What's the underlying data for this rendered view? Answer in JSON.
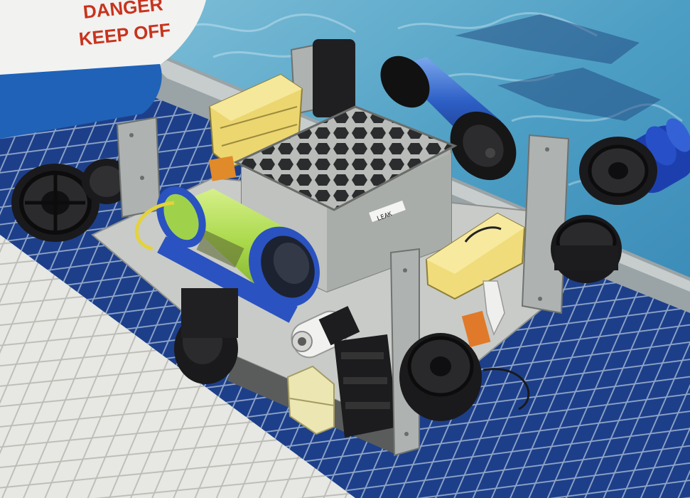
{
  "banner": {
    "line1": "DANGER",
    "line2": "KEEP OFF"
  },
  "hull_label": "LEAK",
  "colors": {
    "pool_water": "#5ea9c9",
    "pool_tile_blue": "#1c3d86",
    "deck_tile_white": "#e6e6e2",
    "frame_gray": "#c9cbc8",
    "enclosure_gray": "#c4c7c3",
    "flotation_yellow": "#f1e08a",
    "tube_green": "#b9e05a",
    "tube_blue": "#2a5cc4",
    "thruster_black": "#1a1a1c",
    "banner_blue": "#1f62b8"
  },
  "icons": {
    "thrusters": "thruster-icon",
    "buoyancy": "float-block-icon",
    "camera": "camera-icon"
  }
}
